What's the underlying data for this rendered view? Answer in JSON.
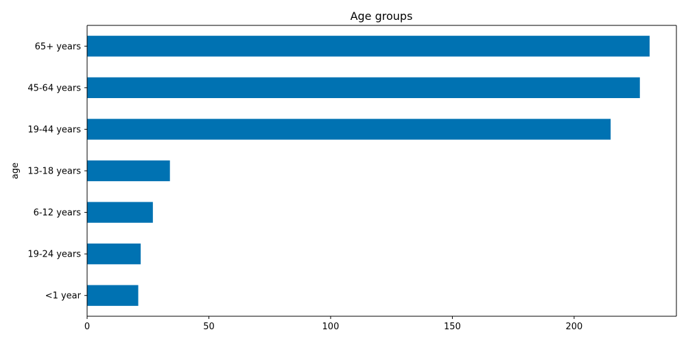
{
  "chart_data": {
    "type": "bar",
    "orientation": "horizontal",
    "title": "Age groups",
    "xlabel": "",
    "ylabel": "age",
    "categories": [
      "<1 year",
      "19-24 years",
      "6-12 years",
      "13-18 years",
      "19-44 years",
      "45-64 years",
      "65+ years"
    ],
    "values": [
      21,
      22,
      27,
      34,
      215,
      227,
      231
    ],
    "xlim": [
      0,
      242
    ],
    "xticks": [
      0,
      50,
      100,
      150,
      200
    ],
    "grid": false,
    "legend": "none",
    "bar_color": "#0072b2"
  }
}
